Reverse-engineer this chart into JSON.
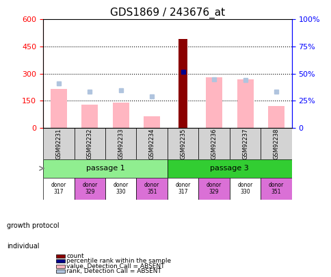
{
  "title": "GDS1869 / 243676_at",
  "samples": [
    "GSM92231",
    "GSM92232",
    "GSM92233",
    "GSM92234",
    "GSM92235",
    "GSM92236",
    "GSM92237",
    "GSM92238"
  ],
  "count_values": [
    null,
    null,
    null,
    null,
    490,
    null,
    null,
    null
  ],
  "value_absent": [
    215,
    130,
    140,
    65,
    null,
    280,
    270,
    120
  ],
  "rank_absent": [
    245,
    200,
    210,
    175,
    null,
    270,
    265,
    200
  ],
  "percentile_rank": [
    null,
    null,
    null,
    null,
    310,
    null,
    null,
    null
  ],
  "ylim_left": [
    0,
    600
  ],
  "ylim_right": [
    0,
    100
  ],
  "yticks_left": [
    0,
    150,
    300,
    450,
    600
  ],
  "yticks_right": [
    0,
    25,
    50,
    75,
    100
  ],
  "growth_protocol": [
    {
      "label": "passage 1",
      "span": [
        0,
        4
      ],
      "color": "#90ee90"
    },
    {
      "label": "passage 3",
      "span": [
        4,
        8
      ],
      "color": "#32cd32"
    }
  ],
  "individuals": [
    {
      "label": "donor\n317",
      "idx": 0,
      "color": "#ffffff"
    },
    {
      "label": "donor\n329",
      "idx": 1,
      "color": "#da70d6"
    },
    {
      "label": "donor\n330",
      "idx": 2,
      "color": "#ffffff"
    },
    {
      "label": "donor\n351",
      "idx": 3,
      "color": "#da70d6"
    },
    {
      "label": "donor\n317",
      "idx": 4,
      "color": "#ffffff"
    },
    {
      "label": "donor\n329",
      "idx": 5,
      "color": "#da70d6"
    },
    {
      "label": "donor\n330",
      "idx": 6,
      "color": "#ffffff"
    },
    {
      "label": "donor\n351",
      "idx": 7,
      "color": "#da70d6"
    }
  ],
  "bar_width": 0.35,
  "count_color": "#8b0000",
  "value_absent_color": "#ffb6c1",
  "rank_absent_color": "#b0c4de",
  "percentile_color": "#00008b",
  "left_axis_color": "red",
  "right_axis_color": "blue",
  "legend_items": [
    {
      "label": "count",
      "color": "#8b0000",
      "marker": "s"
    },
    {
      "label": "percentile rank within the sample",
      "color": "#00008b",
      "marker": "s"
    },
    {
      "label": "value, Detection Call = ABSENT",
      "color": "#ffb6c1",
      "marker": "s"
    },
    {
      "label": "rank, Detection Call = ABSENT",
      "color": "#b0c4de",
      "marker": "s"
    }
  ]
}
